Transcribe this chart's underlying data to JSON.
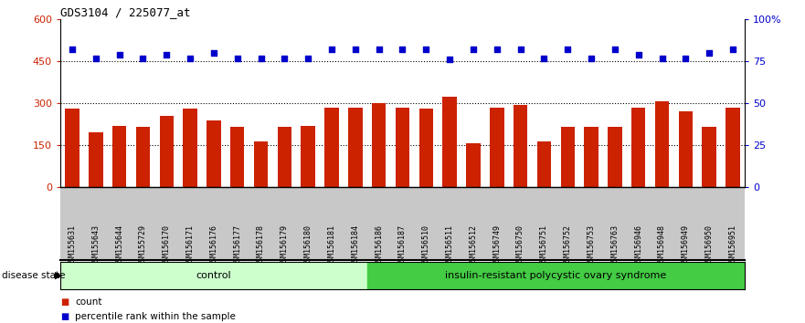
{
  "title": "GDS3104 / 225077_at",
  "samples": [
    "GSM155631",
    "GSM155643",
    "GSM155644",
    "GSM155729",
    "GSM156170",
    "GSM156171",
    "GSM156176",
    "GSM156177",
    "GSM156178",
    "GSM156179",
    "GSM156180",
    "GSM156181",
    "GSM156184",
    "GSM156186",
    "GSM156187",
    "GSM156510",
    "GSM156511",
    "GSM156512",
    "GSM156749",
    "GSM156750",
    "GSM156751",
    "GSM156752",
    "GSM156753",
    "GSM156763",
    "GSM156946",
    "GSM156948",
    "GSM156949",
    "GSM156950",
    "GSM156951"
  ],
  "bar_values": [
    280,
    195,
    220,
    215,
    255,
    280,
    240,
    215,
    163,
    215,
    220,
    285,
    285,
    300,
    285,
    280,
    325,
    158,
    285,
    295,
    165,
    215,
    215,
    215,
    285,
    307,
    270,
    215,
    285
  ],
  "dot_values_pct": [
    82,
    77,
    79,
    77,
    79,
    77,
    80,
    77,
    77,
    77,
    77,
    82,
    82,
    82,
    82,
    82,
    76,
    82,
    82,
    82,
    77,
    82,
    77,
    82,
    79,
    77,
    77,
    80,
    82
  ],
  "control_count": 13,
  "disease_label": "insulin-resistant polycystic ovary syndrome",
  "control_label": "control",
  "bar_color": "#cc2200",
  "dot_color": "#0000cc",
  "ylim_left": [
    0,
    600
  ],
  "ylim_right": [
    0,
    100
  ],
  "yticks_left": [
    0,
    150,
    300,
    450,
    600
  ],
  "ytick_labels_left": [
    "0",
    "150",
    "300",
    "450",
    "600"
  ],
  "yticks_right": [
    0,
    25,
    50,
    75,
    100
  ],
  "ytick_labels_right": [
    "0",
    "25",
    "50",
    "75",
    "100%"
  ],
  "tick_label_color_left": "#cc2200",
  "tick_label_color_right": "#0000cc",
  "legend_count_label": "count",
  "legend_pct_label": "percentile rank within the sample",
  "grid_values": [
    150,
    300,
    450
  ],
  "control_color": "#ccffcc",
  "disease_color": "#44cc44",
  "xtick_bg_color": "#c8c8c8"
}
